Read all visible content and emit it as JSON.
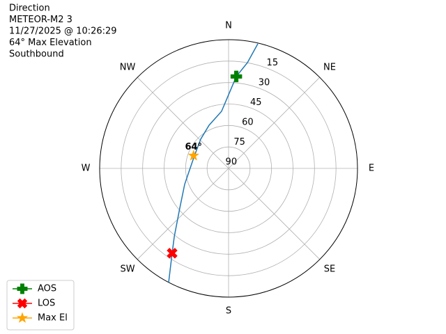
{
  "chart_data": {
    "type": "polar",
    "text_lines": [
      "Direction",
      "METEOR-M2 3",
      "11/27/2025 @ 10:26:29",
      "64° Max Elevation",
      "Southbound"
    ],
    "thetaticks": [
      {
        "value": 0,
        "label": "N"
      },
      {
        "value": 45,
        "label": "NE"
      },
      {
        "value": 90,
        "label": "E"
      },
      {
        "value": 135,
        "label": "SE"
      },
      {
        "value": 180,
        "label": "S"
      },
      {
        "value": 225,
        "label": "SW"
      },
      {
        "value": 270,
        "label": "W"
      },
      {
        "value": 315,
        "label": "NW"
      }
    ],
    "rlim": [
      90,
      0
    ],
    "rticks": [
      15,
      30,
      45,
      60,
      75,
      90
    ],
    "grid": true,
    "track": {
      "color": "#1f77b4",
      "azimuth": [
        13.2,
        10.1,
        4.8,
        353,
        335.7,
        316.4,
        290,
        268,
        250,
        230.4,
        218.5,
        213.6,
        207.7
      ],
      "elevation": [
        0.5,
        14.9,
        25.5,
        49.8,
        56.9,
        61.8,
        64.6,
        62.8,
        57.4,
        45.7,
        29.1,
        18.8,
        0
      ]
    },
    "series": [
      {
        "name": "AOS",
        "color": "#008000",
        "marker": "plus",
        "azimuth": [
          4.8
        ],
        "elevation": [
          25.5
        ]
      },
      {
        "name": "LOS",
        "color": "#ff0000",
        "marker": "x",
        "azimuth": [
          213.6
        ],
        "elevation": [
          18.8
        ]
      },
      {
        "name": "Max El",
        "color": "#ffa500",
        "marker": "star",
        "azimuth": [
          290
        ],
        "elevation": [
          64
        ]
      }
    ],
    "annotation": "64°",
    "legend": "lower left"
  }
}
